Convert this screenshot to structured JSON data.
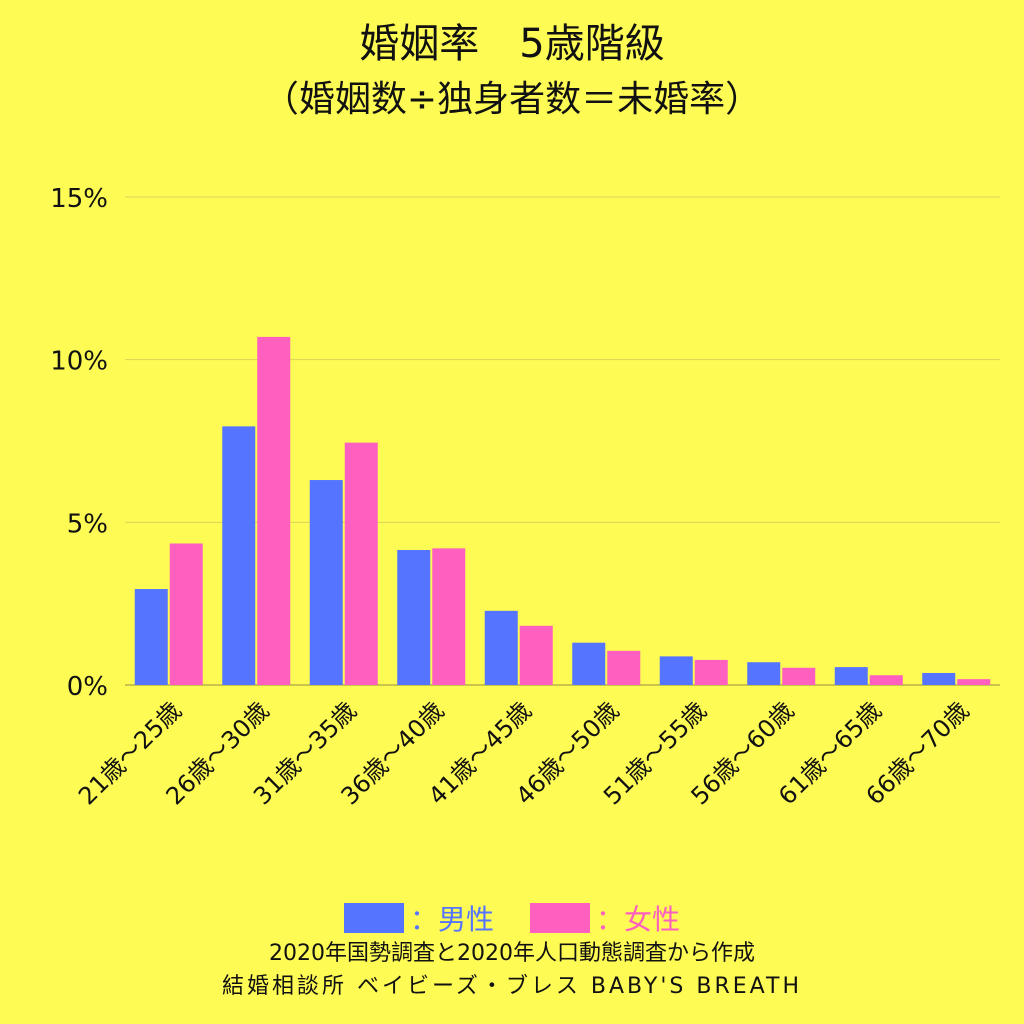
{
  "colors": {
    "background": "#fefb55",
    "male": "#5574ff",
    "female": "#ff5fbf",
    "grid": "#d9d55a"
  },
  "chart_data": {
    "type": "bar",
    "title": "婚姻率　5歳階級",
    "subtitle": "（婚姻数÷独身者数＝未婚率）",
    "categories": [
      "21歳～25歳",
      "26歳～30歳",
      "31歳～35歳",
      "36歳～40歳",
      "41歳～45歳",
      "46歳～50歳",
      "51歳～55歳",
      "56歳～60歳",
      "61歳～65歳",
      "66歳～70歳"
    ],
    "series": [
      {
        "name": "：男性",
        "color": "#5574ff",
        "values": [
          2.95,
          7.95,
          6.3,
          4.15,
          2.28,
          1.3,
          0.88,
          0.7,
          0.55,
          0.37
        ]
      },
      {
        "name": "：女性",
        "color": "#ff5fbf",
        "values": [
          4.35,
          10.7,
          7.45,
          4.2,
          1.82,
          1.05,
          0.77,
          0.53,
          0.3,
          0.18
        ]
      }
    ],
    "ylim": [
      0,
      15
    ],
    "yticks": [
      0,
      5,
      10,
      15
    ],
    "ytick_labels": [
      "0%",
      "5%",
      "10%",
      "15%"
    ],
    "grid": true,
    "legend": "bottom-center",
    "xlabel": "",
    "ylabel": ""
  },
  "footer": {
    "source": "2020年国勢調査と2020年人口動態調査から作成",
    "credit": "結婚相談所 ベイビーズ・ブレス BABY'S BREATH"
  }
}
